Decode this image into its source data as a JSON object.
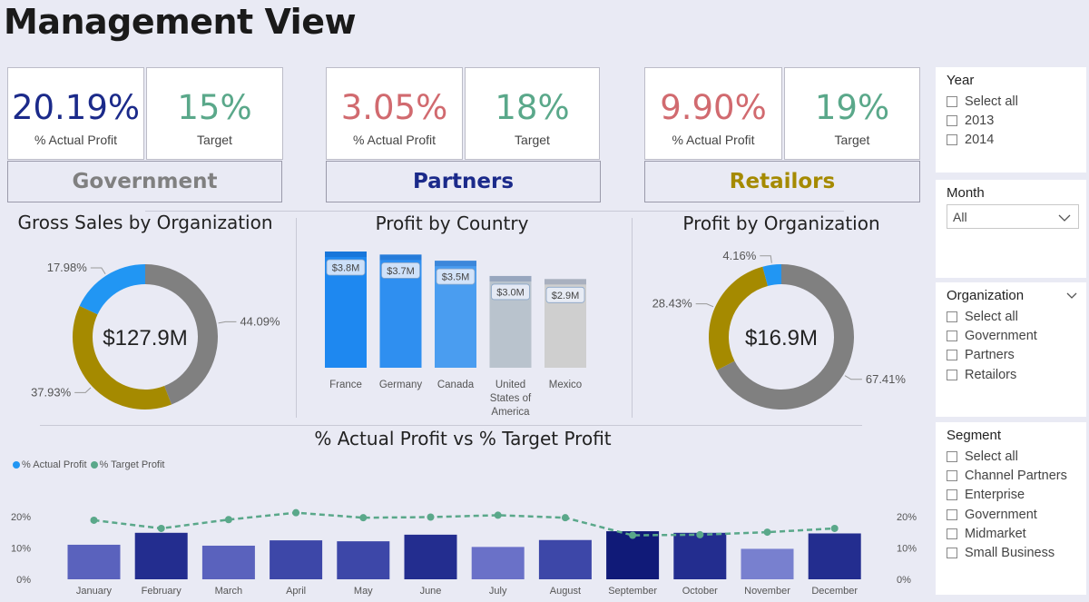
{
  "title": "Management View",
  "kpis": [
    {
      "org": "Government",
      "actual": "20.19%",
      "actual_label": "% Actual Profit",
      "target": "15%",
      "target_label": "Target",
      "actual_color": "#1b2a8a",
      "org_color": "#808080"
    },
    {
      "org": "Partners",
      "actual": "3.05%",
      "actual_label": "% Actual Profit",
      "target": "18%",
      "target_label": "Target",
      "actual_color": "#d16a6f",
      "org_color": "#1b2a8a"
    },
    {
      "org": "Retailors",
      "actual": "9.90%",
      "actual_label": "% Actual Profit",
      "target": "19%",
      "target_label": "Target",
      "actual_color": "#d16a6f",
      "org_color": "#a58a00"
    }
  ],
  "target_color": "#5aa88a",
  "gross_sales": {
    "title": "Gross Sales by Organization",
    "center": "$127.9M",
    "chart_data": {
      "type": "pie",
      "slices": [
        {
          "label": "44.09%",
          "value": 44.09,
          "color": "#808080"
        },
        {
          "label": "37.93%",
          "value": 37.93,
          "color": "#a58a00"
        },
        {
          "label": "17.98%",
          "value": 17.98,
          "color": "#2196f3"
        }
      ]
    }
  },
  "profit_country": {
    "title": "Profit by Country",
    "chart_data": {
      "type": "bar",
      "categories": [
        "France",
        "Germany",
        "Canada",
        "United States of America",
        "Mexico"
      ],
      "category_lines": [
        [
          "France"
        ],
        [
          "Germany"
        ],
        [
          "Canada"
        ],
        [
          "United",
          "States of",
          "America"
        ],
        [
          "Mexico"
        ]
      ],
      "values": [
        3.8,
        3.7,
        3.5,
        3.0,
        2.9
      ],
      "labels": [
        "$3.8M",
        "$3.7M",
        "$3.5M",
        "$3.0M",
        "$2.9M"
      ],
      "colors": [
        "#1e88f0",
        "#2f8ff0",
        "#4a9df0",
        "#b9c3cd",
        "#cfcfcf"
      ]
    }
  },
  "profit_org": {
    "title": "Profit by Organization",
    "center": "$16.9M",
    "chart_data": {
      "type": "pie",
      "slices": [
        {
          "label": "67.41%",
          "value": 67.41,
          "color": "#808080"
        },
        {
          "label": "28.43%",
          "value": 28.43,
          "color": "#a58a00"
        },
        {
          "label": "4.16%",
          "value": 4.16,
          "color": "#2196f3"
        }
      ]
    }
  },
  "profit_vs_target": {
    "title": "% Actual Profit vs % Target Profit",
    "legend": [
      {
        "name": "% Actual Profit",
        "color": "#2196f3"
      },
      {
        "name": "% Target Profit",
        "color": "#5aa88a"
      }
    ],
    "chart_data": {
      "type": "bar",
      "categories": [
        "January",
        "February",
        "March",
        "April",
        "May",
        "June",
        "July",
        "August",
        "September",
        "October",
        "November",
        "December"
      ],
      "y_ticks": [
        "0%",
        "10%",
        "20%"
      ],
      "ylim": [
        0,
        0.25
      ],
      "series": [
        {
          "name": "% Actual Profit",
          "type": "bar",
          "values": [
            0.11,
            0.148,
            0.107,
            0.124,
            0.121,
            0.142,
            0.103,
            0.125,
            0.153,
            0.148,
            0.097,
            0.146
          ],
          "colors": [
            "#5a62bd",
            "#232d8f",
            "#5a62bd",
            "#3d47a8",
            "#3d47a8",
            "#232d8f",
            "#6a71c8",
            "#3d47a8",
            "#101a78",
            "#232d8f",
            "#7880cf",
            "#232d8f"
          ]
        },
        {
          "name": "% Target Profit",
          "type": "line",
          "values": [
            0.188,
            0.162,
            0.19,
            0.212,
            0.196,
            0.198,
            0.204,
            0.196,
            0.14,
            0.142,
            0.15,
            0.162
          ]
        }
      ]
    }
  },
  "slicers": {
    "year": {
      "title": "Year",
      "options": [
        "Select all",
        "2013",
        "2014"
      ]
    },
    "month": {
      "title": "Month",
      "value": "All"
    },
    "organization": {
      "title": "Organization",
      "options": [
        "Select all",
        "Government",
        "Partners",
        "Retailors"
      ]
    },
    "segment": {
      "title": "Segment",
      "options": [
        "Select all",
        "Channel Partners",
        "Enterprise",
        "Government",
        "Midmarket",
        "Small Business"
      ]
    }
  }
}
